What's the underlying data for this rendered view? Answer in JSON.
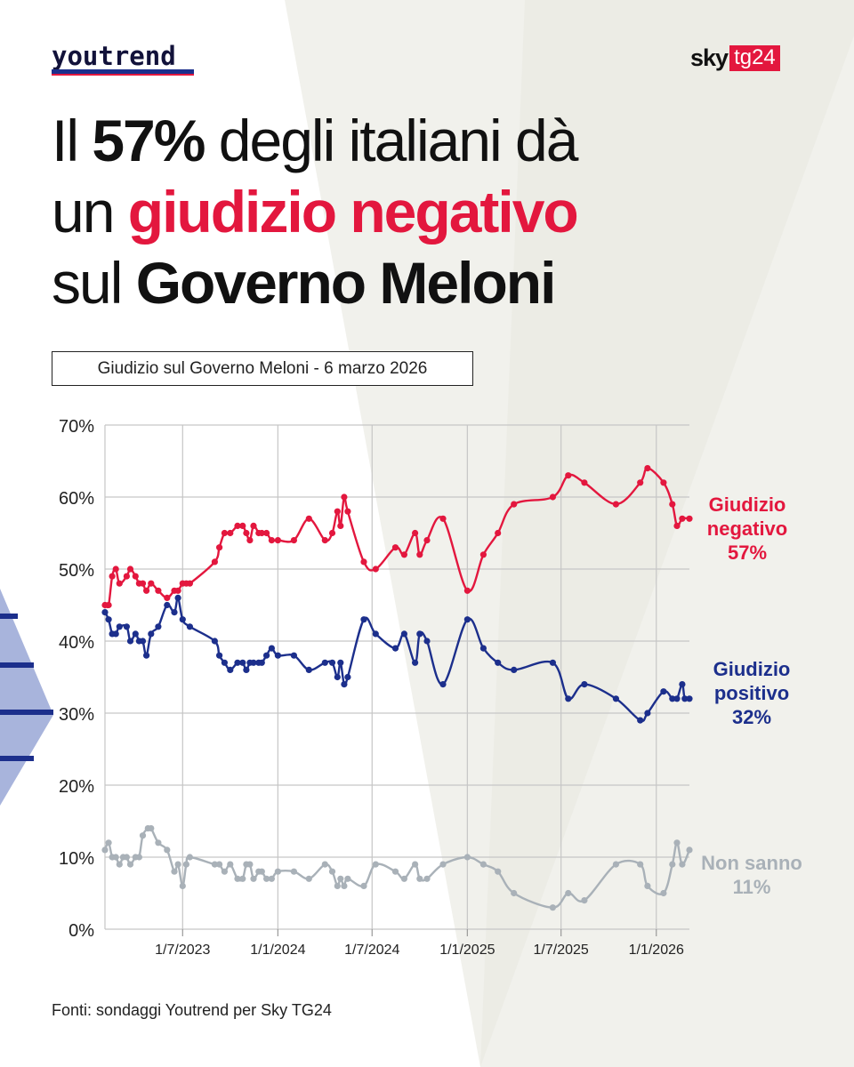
{
  "brand": {
    "youtrend": "youtrend",
    "sky": "sky",
    "tg24": "tg24",
    "colors": {
      "red": "#e3173e",
      "navy": "#12123a",
      "blue": "#1c2f8c"
    }
  },
  "headline": {
    "l1a": "Il ",
    "l1b": "57%",
    "l1c": " degli italiani dà",
    "l2a": "un ",
    "l2b": "giudizio negativo",
    "l3a": "sul ",
    "l3b": "Governo Meloni"
  },
  "subtitle": "Giudizio sul Governo Meloni - 6 marzo 2026",
  "source": "Fonti: sondaggi Youtrend per Sky TG24",
  "chart_data": {
    "type": "line",
    "ylim": [
      0,
      70
    ],
    "y_ticks": [
      "0%",
      "10%",
      "20%",
      "30%",
      "40%",
      "50%",
      "60%",
      "70%"
    ],
    "x_ticks": [
      "1/7/2023",
      "1/1/2024",
      "1/7/2024",
      "1/1/2025",
      "1/7/2025",
      "1/1/2026"
    ],
    "x_range": [
      "2023-02-01",
      "2026-03-06"
    ],
    "grid": true,
    "series": [
      {
        "key": "neg",
        "color": "#e3173e",
        "label_lines": [
          "Giudizio",
          "negativo",
          "57%"
        ],
        "points": [
          [
            "2023-02-01",
            45
          ],
          [
            "2023-02-08",
            45
          ],
          [
            "2023-02-15",
            49
          ],
          [
            "2023-02-22",
            50
          ],
          [
            "2023-03-01",
            48
          ],
          [
            "2023-03-15",
            49
          ],
          [
            "2023-03-22",
            50
          ],
          [
            "2023-04-01",
            49
          ],
          [
            "2023-04-08",
            48
          ],
          [
            "2023-04-15",
            48
          ],
          [
            "2023-04-22",
            47
          ],
          [
            "2023-05-01",
            48
          ],
          [
            "2023-05-15",
            47
          ],
          [
            "2023-06-01",
            46
          ],
          [
            "2023-06-15",
            47
          ],
          [
            "2023-06-22",
            47
          ],
          [
            "2023-07-01",
            48
          ],
          [
            "2023-07-08",
            48
          ],
          [
            "2023-07-15",
            48
          ],
          [
            "2023-09-01",
            51
          ],
          [
            "2023-09-10",
            53
          ],
          [
            "2023-09-20",
            55
          ],
          [
            "2023-10-01",
            55
          ],
          [
            "2023-10-15",
            56
          ],
          [
            "2023-10-25",
            56
          ],
          [
            "2023-11-01",
            55
          ],
          [
            "2023-11-08",
            54
          ],
          [
            "2023-11-15",
            56
          ],
          [
            "2023-11-25",
            55
          ],
          [
            "2023-12-01",
            55
          ],
          [
            "2023-12-10",
            55
          ],
          [
            "2023-12-20",
            54
          ],
          [
            "2024-01-01",
            54
          ],
          [
            "2024-02-01",
            54
          ],
          [
            "2024-03-01",
            57
          ],
          [
            "2024-04-01",
            54
          ],
          [
            "2024-04-15",
            55
          ],
          [
            "2024-04-25",
            58
          ],
          [
            "2024-05-01",
            56
          ],
          [
            "2024-05-08",
            60
          ],
          [
            "2024-05-15",
            58
          ],
          [
            "2024-06-15",
            51
          ],
          [
            "2024-07-08",
            50
          ],
          [
            "2024-08-15",
            53
          ],
          [
            "2024-09-01",
            52
          ],
          [
            "2024-09-22",
            55
          ],
          [
            "2024-10-01",
            52
          ],
          [
            "2024-10-15",
            54
          ],
          [
            "2024-11-15",
            57
          ],
          [
            "2025-01-01",
            47
          ],
          [
            "2025-02-01",
            52
          ],
          [
            "2025-03-01",
            55
          ],
          [
            "2025-04-01",
            59
          ],
          [
            "2025-06-15",
            60
          ],
          [
            "2025-07-15",
            63
          ],
          [
            "2025-08-15",
            62
          ],
          [
            "2025-10-15",
            59
          ],
          [
            "2025-12-01",
            62
          ],
          [
            "2025-12-15",
            64
          ],
          [
            "2026-01-15",
            62
          ],
          [
            "2026-02-01",
            59
          ],
          [
            "2026-02-10",
            56
          ],
          [
            "2026-02-20",
            57
          ],
          [
            "2026-03-06",
            57
          ]
        ]
      },
      {
        "key": "pos",
        "color": "#1c2f8c",
        "label_lines": [
          "Giudizio",
          "positivo",
          "32%"
        ],
        "points": [
          [
            "2023-02-01",
            44
          ],
          [
            "2023-02-08",
            43
          ],
          [
            "2023-02-15",
            41
          ],
          [
            "2023-02-22",
            41
          ],
          [
            "2023-03-01",
            42
          ],
          [
            "2023-03-15",
            42
          ],
          [
            "2023-03-22",
            40
          ],
          [
            "2023-04-01",
            41
          ],
          [
            "2023-04-08",
            40
          ],
          [
            "2023-04-15",
            40
          ],
          [
            "2023-04-22",
            38
          ],
          [
            "2023-05-01",
            41
          ],
          [
            "2023-05-15",
            42
          ],
          [
            "2023-06-01",
            45
          ],
          [
            "2023-06-15",
            44
          ],
          [
            "2023-06-22",
            46
          ],
          [
            "2023-07-01",
            43
          ],
          [
            "2023-07-15",
            42
          ],
          [
            "2023-09-01",
            40
          ],
          [
            "2023-09-10",
            38
          ],
          [
            "2023-09-20",
            37
          ],
          [
            "2023-10-01",
            36
          ],
          [
            "2023-10-15",
            37
          ],
          [
            "2023-10-25",
            37
          ],
          [
            "2023-11-01",
            36
          ],
          [
            "2023-11-08",
            37
          ],
          [
            "2023-11-15",
            37
          ],
          [
            "2023-11-25",
            37
          ],
          [
            "2023-12-01",
            37
          ],
          [
            "2023-12-10",
            38
          ],
          [
            "2023-12-20",
            39
          ],
          [
            "2024-01-01",
            38
          ],
          [
            "2024-02-01",
            38
          ],
          [
            "2024-03-01",
            36
          ],
          [
            "2024-04-01",
            37
          ],
          [
            "2024-04-15",
            37
          ],
          [
            "2024-04-25",
            35
          ],
          [
            "2024-05-01",
            37
          ],
          [
            "2024-05-08",
            34
          ],
          [
            "2024-05-15",
            35
          ],
          [
            "2024-06-15",
            43
          ],
          [
            "2024-07-08",
            41
          ],
          [
            "2024-08-15",
            39
          ],
          [
            "2024-09-01",
            41
          ],
          [
            "2024-09-22",
            37
          ],
          [
            "2024-10-01",
            41
          ],
          [
            "2024-10-15",
            40
          ],
          [
            "2024-11-15",
            34
          ],
          [
            "2025-01-01",
            43
          ],
          [
            "2025-02-01",
            39
          ],
          [
            "2025-03-01",
            37
          ],
          [
            "2025-04-01",
            36
          ],
          [
            "2025-06-15",
            37
          ],
          [
            "2025-07-15",
            32
          ],
          [
            "2025-08-15",
            34
          ],
          [
            "2025-10-15",
            32
          ],
          [
            "2025-12-01",
            29
          ],
          [
            "2025-12-15",
            30
          ],
          [
            "2026-01-15",
            33
          ],
          [
            "2026-02-01",
            32
          ],
          [
            "2026-02-10",
            32
          ],
          [
            "2026-02-20",
            34
          ],
          [
            "2026-02-25",
            32
          ],
          [
            "2026-03-06",
            32
          ]
        ]
      },
      {
        "key": "ns",
        "color": "#a9b1b8",
        "label_lines": [
          "Non sanno",
          "11%"
        ],
        "points": [
          [
            "2023-02-01",
            11
          ],
          [
            "2023-02-08",
            12
          ],
          [
            "2023-02-15",
            10
          ],
          [
            "2023-02-22",
            10
          ],
          [
            "2023-03-01",
            9
          ],
          [
            "2023-03-08",
            10
          ],
          [
            "2023-03-15",
            10
          ],
          [
            "2023-03-22",
            9
          ],
          [
            "2023-04-01",
            10
          ],
          [
            "2023-04-08",
            10
          ],
          [
            "2023-04-15",
            13
          ],
          [
            "2023-04-25",
            14
          ],
          [
            "2023-05-01",
            14
          ],
          [
            "2023-05-15",
            12
          ],
          [
            "2023-06-01",
            11
          ],
          [
            "2023-06-15",
            8
          ],
          [
            "2023-06-22",
            9
          ],
          [
            "2023-07-01",
            6
          ],
          [
            "2023-07-08",
            9
          ],
          [
            "2023-07-15",
            10
          ],
          [
            "2023-09-01",
            9
          ],
          [
            "2023-09-10",
            9
          ],
          [
            "2023-09-20",
            8
          ],
          [
            "2023-10-01",
            9
          ],
          [
            "2023-10-15",
            7
          ],
          [
            "2023-10-25",
            7
          ],
          [
            "2023-11-01",
            9
          ],
          [
            "2023-11-08",
            9
          ],
          [
            "2023-11-15",
            7
          ],
          [
            "2023-11-25",
            8
          ],
          [
            "2023-12-01",
            8
          ],
          [
            "2023-12-10",
            7
          ],
          [
            "2023-12-20",
            7
          ],
          [
            "2024-01-01",
            8
          ],
          [
            "2024-02-01",
            8
          ],
          [
            "2024-03-01",
            7
          ],
          [
            "2024-04-01",
            9
          ],
          [
            "2024-04-15",
            8
          ],
          [
            "2024-04-25",
            6
          ],
          [
            "2024-05-01",
            7
          ],
          [
            "2024-05-08",
            6
          ],
          [
            "2024-05-15",
            7
          ],
          [
            "2024-06-15",
            6
          ],
          [
            "2024-07-08",
            9
          ],
          [
            "2024-08-15",
            8
          ],
          [
            "2024-09-01",
            7
          ],
          [
            "2024-09-22",
            9
          ],
          [
            "2024-10-01",
            7
          ],
          [
            "2024-10-15",
            7
          ],
          [
            "2024-11-15",
            9
          ],
          [
            "2025-01-01",
            10
          ],
          [
            "2025-02-01",
            9
          ],
          [
            "2025-03-01",
            8
          ],
          [
            "2025-04-01",
            5
          ],
          [
            "2025-06-15",
            3
          ],
          [
            "2025-07-15",
            5
          ],
          [
            "2025-08-15",
            4
          ],
          [
            "2025-10-15",
            9
          ],
          [
            "2025-12-01",
            9
          ],
          [
            "2025-12-15",
            6
          ],
          [
            "2026-01-15",
            5
          ],
          [
            "2026-02-01",
            9
          ],
          [
            "2026-02-10",
            12
          ],
          [
            "2026-02-20",
            9
          ],
          [
            "2026-03-06",
            11
          ]
        ]
      }
    ]
  }
}
